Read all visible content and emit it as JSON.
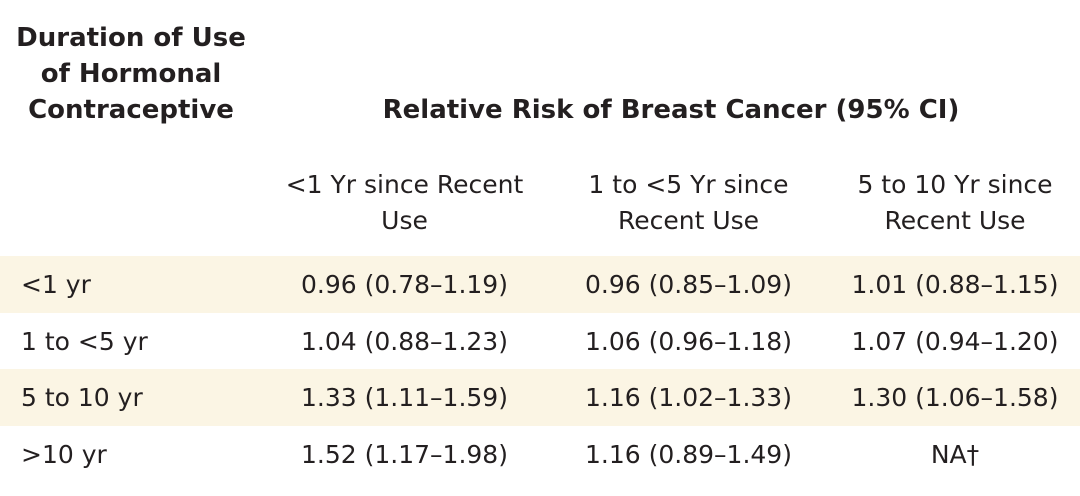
{
  "header": {
    "duration_line1": "Duration of Use",
    "duration_line2": "of Hormonal",
    "duration_line3": "Contraceptive",
    "relative_risk": "Relative Risk of Breast Cancer (95% CI)"
  },
  "columns": [
    {
      "line1": "<1 Yr since Recent",
      "line2": "Use"
    },
    {
      "line1": "1 to <5 Yr since",
      "line2": "Recent Use"
    },
    {
      "line1": "5 to 10 Yr since",
      "line2": "Recent Use"
    }
  ],
  "rows": [
    {
      "label": "<1 yr",
      "cells": [
        "0.96 (0.78–1.19)",
        "0.96 (0.85–1.09)",
        "1.01 (0.88–1.15)"
      ]
    },
    {
      "label": "1 to <5 yr",
      "cells": [
        "1.04 (0.88–1.23)",
        "1.06 (0.96–1.18)",
        "1.07 (0.94–1.20)"
      ]
    },
    {
      "label": "5 to 10 yr",
      "cells": [
        "1.33 (1.11–1.59)",
        "1.16 (1.02–1.33)",
        "1.30 (1.06–1.58)"
      ]
    },
    {
      "label": ">10 yr",
      "cells": [
        "1.52 (1.17–1.98)",
        "1.16 (0.89–1.49)",
        "NA†"
      ]
    }
  ],
  "colors": {
    "shaded_row": "#fbf5e4",
    "text": "#231f20"
  }
}
